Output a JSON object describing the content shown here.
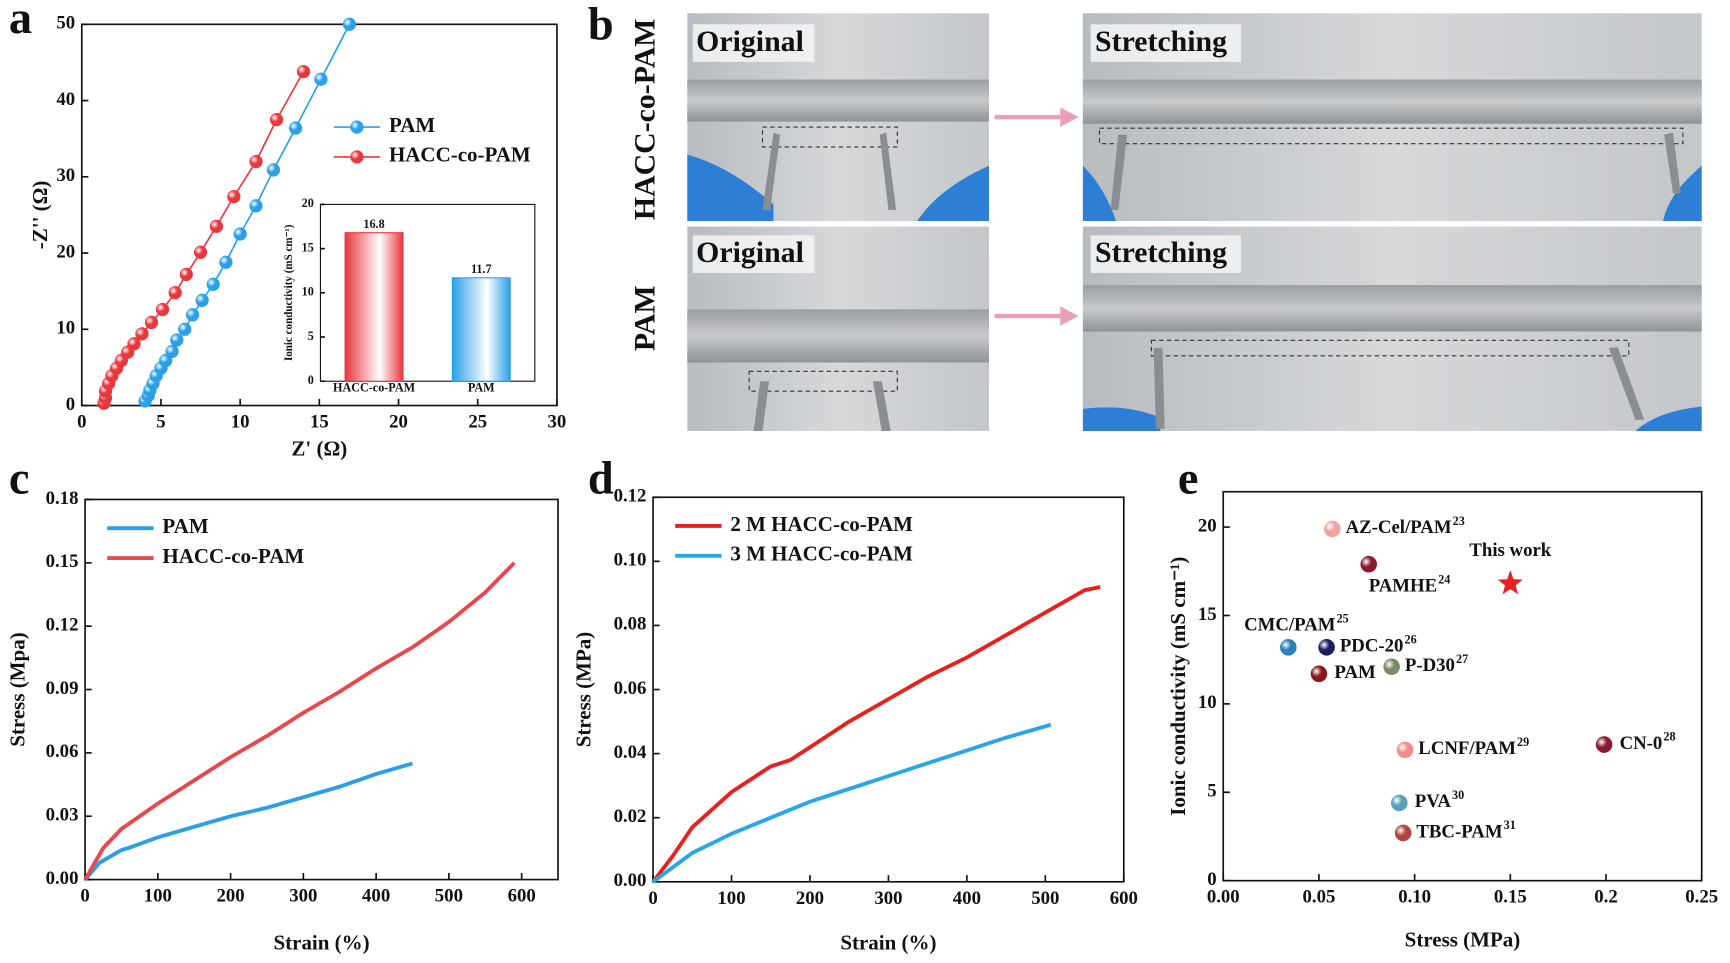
{
  "chart_data": [
    {
      "type": "line",
      "label": "a",
      "markers": true,
      "xlabel": "Z' (Ω)",
      "ylabel": "-Z'' (Ω)",
      "xlim": [
        0,
        30
      ],
      "ylim": [
        0,
        50
      ],
      "xticks": [
        0,
        5,
        10,
        15,
        20,
        25,
        30
      ],
      "yticks": [
        0,
        10,
        20,
        30,
        40,
        50
      ],
      "legend": "center right",
      "series": [
        {
          "name": "PAM",
          "color": "#2aa0e8",
          "x": [
            4.0,
            4.2,
            4.3,
            4.5,
            4.7,
            5.0,
            5.3,
            5.7,
            6.0,
            6.5,
            7.0,
            7.6,
            8.3,
            9.1,
            10.0,
            11.0,
            12.1,
            13.5,
            15.1,
            16.9
          ],
          "values": [
            0.6,
            1.3,
            2.0,
            2.9,
            3.9,
            4.9,
            5.9,
            7.1,
            8.6,
            10.0,
            11.9,
            13.8,
            15.9,
            18.8,
            22.5,
            26.2,
            30.9,
            36.4,
            42.8,
            50
          ]
        },
        {
          "name": "HACC-co-PAM",
          "color": "#e8373d",
          "x": [
            1.4,
            1.5,
            1.5,
            1.7,
            1.9,
            2.2,
            2.5,
            2.9,
            3.3,
            3.8,
            4.4,
            5.1,
            5.9,
            6.6,
            7.5,
            8.5,
            9.6,
            11.0,
            12.3,
            14.0
          ],
          "values": [
            0.3,
            1.0,
            1.9,
            2.9,
            3.9,
            4.9,
            5.9,
            7.0,
            8.1,
            9.4,
            10.9,
            12.6,
            14.8,
            17.2,
            20.1,
            23.5,
            27.4,
            32.0,
            37.5,
            43.8
          ]
        }
      ]
    },
    {
      "type": "bar",
      "ylabel": "Ionic conductivity (mS cm⁻¹)",
      "categories": [
        "HACC-co-PAM",
        "PAM"
      ],
      "values": [
        16.8,
        11.7
      ],
      "colors": [
        "#e8373d",
        "#2aa0e8"
      ],
      "ylim": [
        0,
        20
      ],
      "yticks": [
        0,
        5,
        10,
        15,
        20
      ]
    },
    {
      "type": "line",
      "label": "c",
      "xlabel": "Strain (%)",
      "ylabel": "Stress (Mpa)",
      "legend": "upper left",
      "xlim": [
        0,
        650
      ],
      "ylim": [
        0,
        0.18
      ],
      "xticks": [
        0,
        100,
        200,
        300,
        400,
        500,
        600
      ],
      "yticks": [
        {
          "value": 0,
          "label": "0.00"
        },
        0.03,
        0.06,
        0.09,
        0.12,
        0.15,
        0.18
      ],
      "series": [
        {
          "name": "PAM",
          "color": "#2b9fe6",
          "x": [
            0,
            20,
            50,
            60,
            100,
            150,
            200,
            250,
            300,
            350,
            400,
            450
          ],
          "values": [
            0,
            0.008,
            0.014,
            0.015,
            0.02,
            0.025,
            0.03,
            0.034,
            0.039,
            0.044,
            0.05,
            0.055
          ]
        },
        {
          "name": "HACC-co-PAM",
          "color": "#e8474b",
          "x": [
            0,
            25,
            50,
            100,
            150,
            200,
            250,
            300,
            350,
            400,
            450,
            500,
            550,
            590
          ],
          "values": [
            0,
            0.015,
            0.024,
            0.036,
            0.047,
            0.058,
            0.068,
            0.079,
            0.089,
            0.1,
            0.11,
            0.122,
            0.136,
            0.15
          ]
        }
      ]
    },
    {
      "type": "line",
      "label": "d",
      "xlabel": "Strain (%)",
      "ylabel": "Stress (MPa)",
      "legend": "upper left",
      "xlim": [
        0,
        600
      ],
      "ylim": [
        0,
        0.12
      ],
      "xticks": [
        0,
        100,
        200,
        300,
        400,
        500,
        600
      ],
      "yticks": [
        {
          "value": 0,
          "label": "0.00"
        },
        0.02,
        0.04,
        0.06,
        0.08,
        {
          "value": 0.1,
          "label": "0.10"
        },
        0.12
      ],
      "series": [
        {
          "name": "2 M HACC-co-PAM",
          "color": "#e8201e",
          "x": [
            0,
            25,
            50,
            100,
            150,
            175,
            200,
            250,
            300,
            350,
            400,
            450,
            500,
            550,
            570
          ],
          "values": [
            0,
            0.008,
            0.017,
            0.028,
            0.036,
            0.038,
            0.042,
            0.05,
            0.057,
            0.064,
            0.07,
            0.077,
            0.084,
            0.091,
            0.092
          ]
        },
        {
          "name": "3 M HACC-co-PAM",
          "color": "#2ba5ea",
          "x": [
            0,
            50,
            100,
            150,
            200,
            250,
            300,
            350,
            400,
            450,
            507
          ],
          "values": [
            0,
            0.009,
            0.015,
            0.02,
            0.025,
            0.029,
            0.033,
            0.037,
            0.041,
            0.045,
            0.049
          ]
        }
      ]
    },
    {
      "type": "scatter",
      "label": "e",
      "xlabel": "Stress (MPa)",
      "ylabel": "Ionic conductivity (mS cm⁻¹)",
      "xlim": [
        0,
        0.25
      ],
      "ylim": [
        0,
        22
      ],
      "xticks": [
        {
          "value": 0,
          "label": "0.00"
        },
        0.05,
        {
          "value": 0.1,
          "label": "0.10"
        },
        0.15,
        0.2,
        0.25
      ],
      "yticks": [
        0,
        5,
        10,
        15,
        20
      ],
      "names": [
        "AZ-Cel/PAM",
        "PAMHE",
        "This work",
        "CMC/PAM",
        "PDC-20",
        "P-D30",
        "PAM",
        "LCNF/PAM",
        "CN-0",
        "PVA",
        "TBC-PAM"
      ],
      "refs": [
        "23",
        "24",
        null,
        "25",
        "26",
        "27",
        null,
        "29",
        "28",
        "30",
        "31"
      ],
      "x": [
        0.057,
        0.076,
        0.15,
        0.034,
        0.054,
        0.088,
        0.05,
        0.095,
        0.199,
        0.092,
        0.094
      ],
      "values": [
        19.9,
        17.9,
        16.8,
        13.2,
        13.2,
        12.1,
        11.7,
        7.4,
        7.7,
        4.4,
        2.7
      ],
      "colors": [
        "#f0a39d",
        "#8b1a2b",
        "#e8201e",
        "#2a7fb8",
        "#1a1f5e",
        "#7a8a6a",
        "#8b1a20",
        "#f08c8c",
        "#8b1a30",
        "#5aa0b8",
        "#b0443e"
      ],
      "markers": [
        "sphere",
        "sphere",
        "star",
        "sphere",
        "sphere",
        "sphere",
        "sphere",
        "sphere",
        "sphere",
        "sphere",
        "sphere"
      ]
    }
  ],
  "panel_b": {
    "label": "b",
    "rows": [
      "HACC-co-PAM",
      "PAM"
    ],
    "images": [
      [
        "Original",
        "Stretching"
      ],
      [
        "Original",
        "Stretching"
      ]
    ]
  }
}
